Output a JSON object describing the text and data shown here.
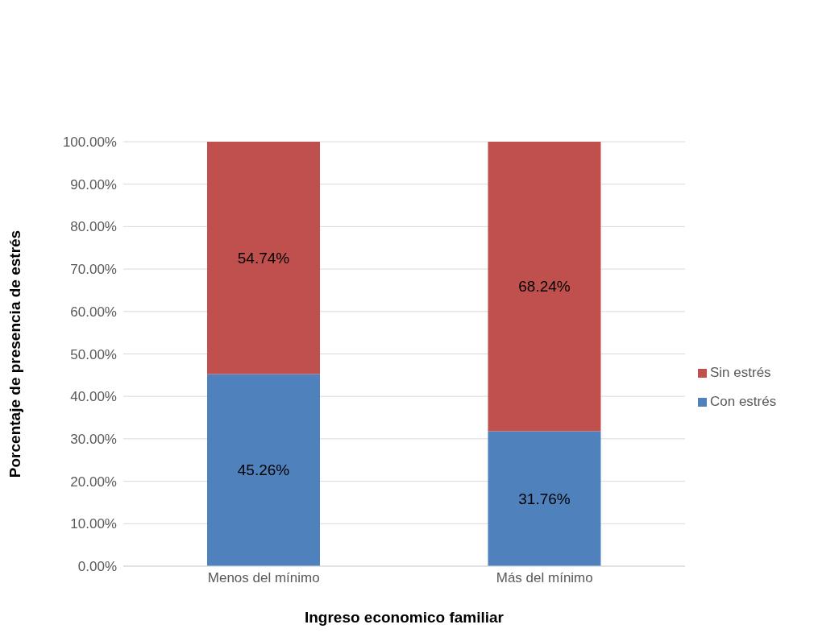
{
  "chart_data": {
    "type": "bar",
    "stacked": true,
    "xlabel": "Ingreso economico familiar",
    "ylabel": "Porcentaje de presencia de estrés",
    "categories": [
      "Menos del mínimo",
      "Más del mínimo"
    ],
    "series": [
      {
        "name": "Con estrés",
        "color": "#4f81bd",
        "values": [
          45.26,
          31.76
        ],
        "value_labels": [
          "45.26%",
          "31.76%"
        ]
      },
      {
        "name": "Sin estrés",
        "color": "#c0504d",
        "values": [
          54.74,
          68.24
        ],
        "value_labels": [
          "54.74%",
          "68.24%"
        ]
      }
    ],
    "ylim": [
      0,
      100
    ],
    "yticks": [
      {
        "value": 0,
        "label": "0.00%"
      },
      {
        "value": 10,
        "label": "10.00%"
      },
      {
        "value": 20,
        "label": "20.00%"
      },
      {
        "value": 30,
        "label": "30.00%"
      },
      {
        "value": 40,
        "label": "40.00%"
      },
      {
        "value": 50,
        "label": "50.00%"
      },
      {
        "value": 60,
        "label": "60.00%"
      },
      {
        "value": 70,
        "label": "70.00%"
      },
      {
        "value": 80,
        "label": "80.00%"
      },
      {
        "value": 90,
        "label": "90.00%"
      },
      {
        "value": 100,
        "label": "100.00%"
      }
    ],
    "grid": "y",
    "legend": "right"
  }
}
